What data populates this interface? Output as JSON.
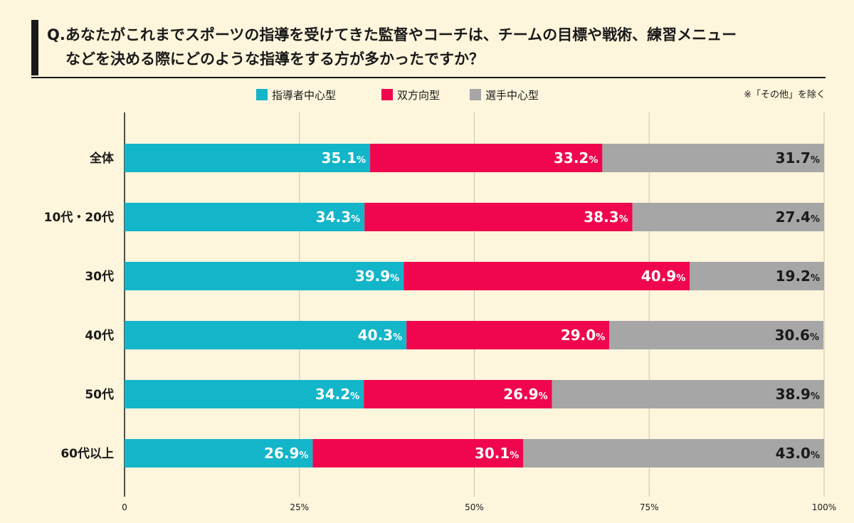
{
  "title_line1": "Q.あなたがこれまでスポーツの指導を受けてきた監督やコーチは、チームの目標や戦術、練習メニュー",
  "title_line2": "などを決める際にどのような指導をする方が多かったですか？",
  "note": "※「その他」を除く",
  "chart_data": {
    "type": "bar",
    "orientation": "horizontal",
    "stacked": true,
    "categories": [
      "全体",
      "10代・20代",
      "30代",
      "40代",
      "50代",
      "60代以上"
    ],
    "series": [
      {
        "name": "指導者中心型",
        "color": "#13b5c9",
        "label_color": "#ffffff",
        "values": [
          35.1,
          34.3,
          39.9,
          40.3,
          34.2,
          26.9
        ]
      },
      {
        "name": "双方向型",
        "color": "#f0064f",
        "label_color": "#ffffff",
        "values": [
          33.2,
          38.3,
          40.9,
          29.0,
          26.9,
          30.1
        ]
      },
      {
        "name": "選手中心型",
        "color": "#a6a6a6",
        "label_color": "#1a1a1a",
        "values": [
          31.7,
          27.4,
          19.2,
          30.6,
          38.9,
          43.0
        ]
      }
    ],
    "x_ticks": [
      {
        "value": 0,
        "label": "0"
      },
      {
        "value": 25,
        "label": "25%"
      },
      {
        "value": 50,
        "label": "50%"
      },
      {
        "value": 75,
        "label": "75%"
      },
      {
        "value": 100,
        "label": "100%"
      }
    ],
    "xlim": [
      0,
      100
    ],
    "value_suffix": "%",
    "grid": true,
    "legend_position": "top"
  }
}
